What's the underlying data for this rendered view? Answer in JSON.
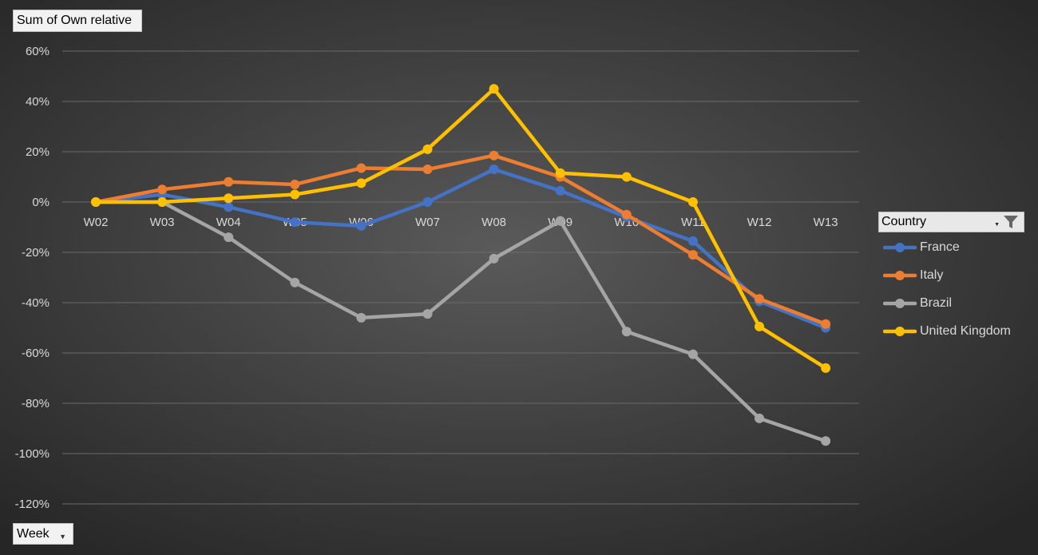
{
  "value_field": {
    "label": "Sum of Own relative"
  },
  "axis_field": {
    "label": "Week"
  },
  "legend": {
    "title": "Country"
  },
  "chart_data": {
    "type": "line",
    "categories": [
      "W02",
      "W03",
      "W04",
      "W05",
      "W06",
      "W07",
      "W08",
      "W09",
      "W10",
      "W11",
      "W12",
      "W13"
    ],
    "ylim": [
      -1.2,
      0.6
    ],
    "y_ticks": [
      0.6,
      0.4,
      0.2,
      0,
      -0.2,
      -0.4,
      -0.6,
      -0.8,
      -1.0,
      -1.2
    ],
    "y_tick_labels": [
      "60%",
      "40%",
      "20%",
      "0%",
      "-20%",
      "-40%",
      "-60%",
      "-80%",
      "-100%",
      "-120%"
    ],
    "grid": true,
    "legend_position": "right",
    "series": [
      {
        "name": "France",
        "color": "#4472c4",
        "values": [
          0,
          0.03,
          -0.02,
          -0.08,
          -0.095,
          0.0,
          0.13,
          0.045,
          -0.06,
          -0.155,
          -0.395,
          -0.5
        ]
      },
      {
        "name": "Italy",
        "color": "#ed7d31",
        "values": [
          0,
          0.05,
          0.08,
          0.07,
          0.135,
          0.13,
          0.185,
          0.1,
          -0.05,
          -0.21,
          -0.385,
          -0.485
        ]
      },
      {
        "name": "Brazil",
        "color": "#a5a5a5",
        "values": [
          0,
          0.0,
          -0.14,
          -0.32,
          -0.46,
          -0.445,
          -0.225,
          -0.075,
          -0.515,
          -0.605,
          -0.86,
          -0.95
        ]
      },
      {
        "name": "United Kingdom",
        "color": "#ffc000",
        "values": [
          0,
          0.0,
          0.015,
          0.03,
          0.075,
          0.21,
          0.45,
          0.115,
          0.1,
          0.0,
          -0.495,
          -0.66
        ]
      }
    ]
  }
}
